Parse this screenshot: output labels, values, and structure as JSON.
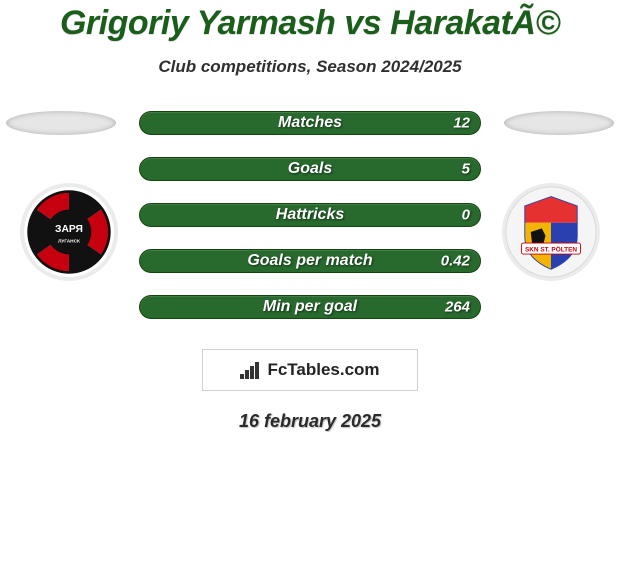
{
  "title": "Grigoriy Yarmash vs HarakatÃ©",
  "title_fontsize": 34,
  "title_color": "#1b5e1b",
  "subtitle": "Club competitions, Season 2024/2025",
  "subtitle_fontsize": 17,
  "subtitle_color": "#303030",
  "bars": {
    "bg_color": "#286a2e",
    "border_color": "#13450f",
    "label_fontsize": 16,
    "value_fontsize": 15,
    "text_color": "#ffffff",
    "items": [
      {
        "label": "Matches",
        "left": "",
        "right": "12"
      },
      {
        "label": "Goals",
        "left": "",
        "right": "5"
      },
      {
        "label": "Hattricks",
        "left": "",
        "right": "0"
      },
      {
        "label": "Goals per match",
        "left": "",
        "right": "0.42"
      },
      {
        "label": "Min per goal",
        "left": "",
        "right": "264"
      }
    ]
  },
  "crest_left": {
    "outer_bg": "#ffffff",
    "triangles": [
      "#111111",
      "#c6000e"
    ],
    "center_text": "ЗАРЯ",
    "sub_text": "ЛУГАНСК"
  },
  "crest_right": {
    "outer_bg": "#f5f5f5",
    "shield_colors": {
      "top": "#e63131",
      "left": "#f2b400",
      "right": "#2a3fb0"
    },
    "banner_text": "SKN ST. PÖLTEN",
    "banner_bg": "#ffffff",
    "banner_color": "#c6000e"
  },
  "site": {
    "name": "FcTables.com",
    "fontsize": 17
  },
  "date": "16 february 2025",
  "date_fontsize": 18,
  "background_color": "#ffffff"
}
